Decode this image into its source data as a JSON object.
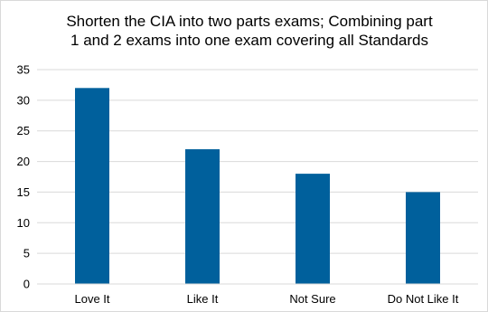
{
  "chart_data": {
    "type": "bar",
    "title_line1": "Shorten the CIA into two parts exams; Combining part",
    "title_line2": "1 and 2 exams into one exam covering all Standards",
    "categories": [
      "Love It",
      "Like It",
      "Not Sure",
      "Do Not Like It"
    ],
    "values": [
      32,
      22,
      18,
      15
    ],
    "ylim": [
      0,
      35
    ],
    "yticks": [
      "0",
      "5",
      "10",
      "15",
      "20",
      "25",
      "30",
      "35"
    ],
    "xlabel": "",
    "ylabel": "",
    "grid": "horizontal",
    "legend": "none",
    "bar_color": "#00609c",
    "grid_color": "#d9d9d9"
  }
}
